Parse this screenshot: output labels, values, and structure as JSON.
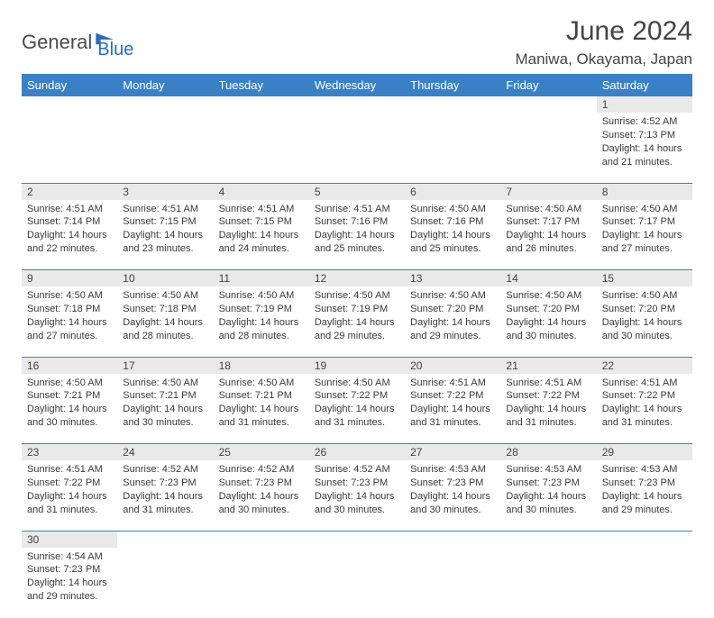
{
  "brand": {
    "part1": "General",
    "part2": "Blue",
    "icon_color": "#2a6db8"
  },
  "title": "June 2024",
  "location": "Maniwa, Okayama, Japan",
  "colors": {
    "header_bg": "#3a80c4",
    "header_fg": "#ffffff",
    "daynum_bg": "#e9e9e9",
    "row_divider": "#3a80c4",
    "text": "#3a3a3a"
  },
  "weekdays": [
    "Sunday",
    "Monday",
    "Tuesday",
    "Wednesday",
    "Thursday",
    "Friday",
    "Saturday"
  ],
  "weeks": [
    [
      null,
      null,
      null,
      null,
      null,
      null,
      {
        "n": "1",
        "sunrise": "4:52 AM",
        "sunset": "7:13 PM",
        "dh": "14",
        "dm": "21"
      }
    ],
    [
      {
        "n": "2",
        "sunrise": "4:51 AM",
        "sunset": "7:14 PM",
        "dh": "14",
        "dm": "22"
      },
      {
        "n": "3",
        "sunrise": "4:51 AM",
        "sunset": "7:15 PM",
        "dh": "14",
        "dm": "23"
      },
      {
        "n": "4",
        "sunrise": "4:51 AM",
        "sunset": "7:15 PM",
        "dh": "14",
        "dm": "24"
      },
      {
        "n": "5",
        "sunrise": "4:51 AM",
        "sunset": "7:16 PM",
        "dh": "14",
        "dm": "25"
      },
      {
        "n": "6",
        "sunrise": "4:50 AM",
        "sunset": "7:16 PM",
        "dh": "14",
        "dm": "25"
      },
      {
        "n": "7",
        "sunrise": "4:50 AM",
        "sunset": "7:17 PM",
        "dh": "14",
        "dm": "26"
      },
      {
        "n": "8",
        "sunrise": "4:50 AM",
        "sunset": "7:17 PM",
        "dh": "14",
        "dm": "27"
      }
    ],
    [
      {
        "n": "9",
        "sunrise": "4:50 AM",
        "sunset": "7:18 PM",
        "dh": "14",
        "dm": "27"
      },
      {
        "n": "10",
        "sunrise": "4:50 AM",
        "sunset": "7:18 PM",
        "dh": "14",
        "dm": "28"
      },
      {
        "n": "11",
        "sunrise": "4:50 AM",
        "sunset": "7:19 PM",
        "dh": "14",
        "dm": "28"
      },
      {
        "n": "12",
        "sunrise": "4:50 AM",
        "sunset": "7:19 PM",
        "dh": "14",
        "dm": "29"
      },
      {
        "n": "13",
        "sunrise": "4:50 AM",
        "sunset": "7:20 PM",
        "dh": "14",
        "dm": "29"
      },
      {
        "n": "14",
        "sunrise": "4:50 AM",
        "sunset": "7:20 PM",
        "dh": "14",
        "dm": "30"
      },
      {
        "n": "15",
        "sunrise": "4:50 AM",
        "sunset": "7:20 PM",
        "dh": "14",
        "dm": "30"
      }
    ],
    [
      {
        "n": "16",
        "sunrise": "4:50 AM",
        "sunset": "7:21 PM",
        "dh": "14",
        "dm": "30"
      },
      {
        "n": "17",
        "sunrise": "4:50 AM",
        "sunset": "7:21 PM",
        "dh": "14",
        "dm": "30"
      },
      {
        "n": "18",
        "sunrise": "4:50 AM",
        "sunset": "7:21 PM",
        "dh": "14",
        "dm": "31"
      },
      {
        "n": "19",
        "sunrise": "4:50 AM",
        "sunset": "7:22 PM",
        "dh": "14",
        "dm": "31"
      },
      {
        "n": "20",
        "sunrise": "4:51 AM",
        "sunset": "7:22 PM",
        "dh": "14",
        "dm": "31"
      },
      {
        "n": "21",
        "sunrise": "4:51 AM",
        "sunset": "7:22 PM",
        "dh": "14",
        "dm": "31"
      },
      {
        "n": "22",
        "sunrise": "4:51 AM",
        "sunset": "7:22 PM",
        "dh": "14",
        "dm": "31"
      }
    ],
    [
      {
        "n": "23",
        "sunrise": "4:51 AM",
        "sunset": "7:22 PM",
        "dh": "14",
        "dm": "31"
      },
      {
        "n": "24",
        "sunrise": "4:52 AM",
        "sunset": "7:23 PM",
        "dh": "14",
        "dm": "31"
      },
      {
        "n": "25",
        "sunrise": "4:52 AM",
        "sunset": "7:23 PM",
        "dh": "14",
        "dm": "30"
      },
      {
        "n": "26",
        "sunrise": "4:52 AM",
        "sunset": "7:23 PM",
        "dh": "14",
        "dm": "30"
      },
      {
        "n": "27",
        "sunrise": "4:53 AM",
        "sunset": "7:23 PM",
        "dh": "14",
        "dm": "30"
      },
      {
        "n": "28",
        "sunrise": "4:53 AM",
        "sunset": "7:23 PM",
        "dh": "14",
        "dm": "30"
      },
      {
        "n": "29",
        "sunrise": "4:53 AM",
        "sunset": "7:23 PM",
        "dh": "14",
        "dm": "29"
      }
    ],
    [
      {
        "n": "30",
        "sunrise": "4:54 AM",
        "sunset": "7:23 PM",
        "dh": "14",
        "dm": "29"
      },
      null,
      null,
      null,
      null,
      null,
      null
    ]
  ],
  "labels": {
    "sunrise": "Sunrise: ",
    "sunset": "Sunset: ",
    "daylight1": "Daylight: ",
    "daylight2": " hours",
    "daylight3": "and ",
    "daylight4": " minutes."
  }
}
